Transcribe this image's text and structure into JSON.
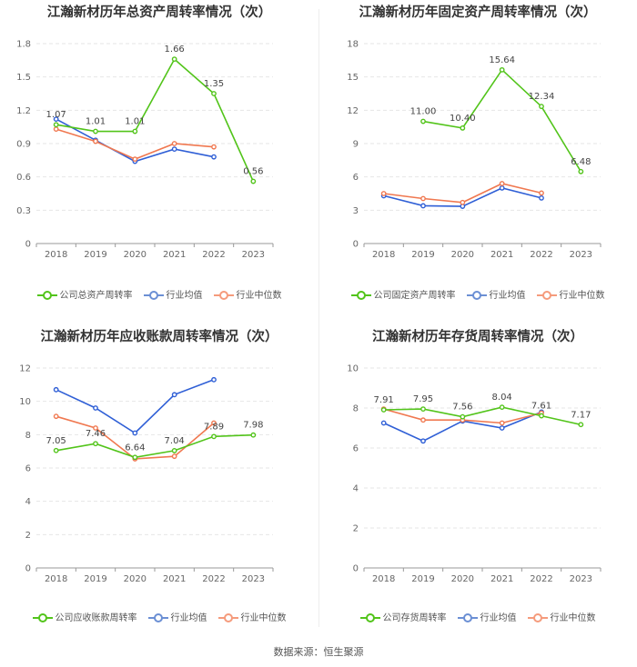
{
  "source": "数据来源：恒生聚源",
  "legend_colors": [
    "#52c41a",
    "#6b8fd4",
    "#f59b7c"
  ],
  "line_colors": [
    "#52c41a",
    "#2f5fd6",
    "#f07850"
  ],
  "chart_data": [
    {
      "type": "line",
      "title": "江瀚新材历年总资产周转率情况（次）",
      "categories": [
        "2018",
        "2019",
        "2020",
        "2021",
        "2022",
        "2023"
      ],
      "ylim": [
        0,
        1.8
      ],
      "yticks": [
        "0",
        "0.3",
        "0.6",
        "0.9",
        "1.2",
        "1.5",
        "1.8"
      ],
      "series": [
        {
          "name": "公司总资产周转率",
          "values": [
            1.07,
            1.01,
            1.01,
            1.66,
            1.35,
            0.56
          ],
          "labels": [
            "1.07",
            "1.01",
            "1.01",
            "1.66",
            "1.35",
            "0.56"
          ]
        },
        {
          "name": "行业均值",
          "values": [
            1.12,
            0.93,
            0.74,
            0.85,
            0.78,
            null
          ]
        },
        {
          "name": "行业中位数",
          "values": [
            1.03,
            0.92,
            0.76,
            0.9,
            0.87,
            null
          ]
        }
      ]
    },
    {
      "type": "line",
      "title": "江瀚新材历年固定资产周转率情况（次）",
      "categories": [
        "2018",
        "2019",
        "2020",
        "2021",
        "2022",
        "2023"
      ],
      "ylim": [
        0,
        18
      ],
      "yticks": [
        "0",
        "3",
        "6",
        "9",
        "12",
        "15",
        "18"
      ],
      "series": [
        {
          "name": "公司固定资产周转率",
          "values": [
            null,
            11.0,
            10.4,
            15.64,
            12.34,
            6.48
          ],
          "labels": [
            null,
            "11.00",
            "10.40",
            "15.64",
            "12.34",
            "6.48"
          ]
        },
        {
          "name": "行业均值",
          "values": [
            4.3,
            3.4,
            3.35,
            5.0,
            4.1,
            null
          ]
        },
        {
          "name": "行业中位数",
          "values": [
            4.5,
            4.05,
            3.7,
            5.4,
            4.55,
            null
          ]
        }
      ]
    },
    {
      "type": "line",
      "title": "江瀚新材历年应收账款周转率情况（次）",
      "categories": [
        "2018",
        "2019",
        "2020",
        "2021",
        "2022",
        "2023"
      ],
      "ylim": [
        0,
        12
      ],
      "yticks": [
        "0",
        "2",
        "4",
        "6",
        "8",
        "10",
        "12"
      ],
      "series": [
        {
          "name": "公司应收账款周转率",
          "values": [
            7.05,
            7.46,
            6.64,
            7.04,
            7.89,
            7.98
          ],
          "labels": [
            "7.05",
            "7.46",
            "6.64",
            "7.04",
            "7.89",
            "7.98"
          ]
        },
        {
          "name": "行业均值",
          "values": [
            10.7,
            9.6,
            8.1,
            10.4,
            11.3,
            null
          ]
        },
        {
          "name": "行业中位数",
          "values": [
            9.1,
            8.4,
            6.55,
            6.7,
            8.7,
            null
          ]
        }
      ]
    },
    {
      "type": "line",
      "title": "江瀚新材历年存货周转率情况（次）",
      "categories": [
        "2018",
        "2019",
        "2020",
        "2021",
        "2022",
        "2023"
      ],
      "ylim": [
        0,
        10
      ],
      "yticks": [
        "0",
        "2",
        "4",
        "6",
        "8",
        "10"
      ],
      "series": [
        {
          "name": "公司存货周转率",
          "values": [
            7.91,
            7.95,
            7.56,
            8.04,
            7.61,
            7.17
          ],
          "labels": [
            "7.91",
            "7.95",
            "7.56",
            "8.04",
            "7.61",
            "7.17"
          ]
        },
        {
          "name": "行业均值",
          "values": [
            7.25,
            6.35,
            7.35,
            7.0,
            7.8,
            null
          ]
        },
        {
          "name": "行业中位数",
          "values": [
            7.95,
            7.4,
            7.4,
            7.25,
            7.75,
            null
          ]
        }
      ]
    }
  ]
}
